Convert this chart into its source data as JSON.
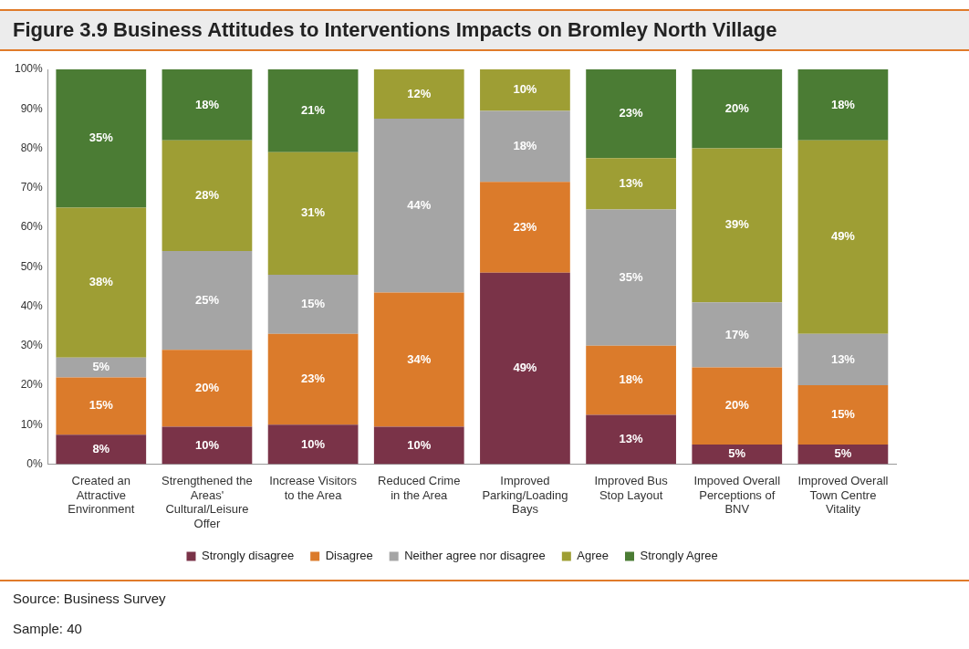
{
  "chart_data": {
    "type": "bar",
    "stacked": true,
    "title": "Figure 3.9 Business Attitudes to Interventions Impacts on Bromley North Village",
    "categories": [
      "Created an Attractive Environment",
      "Strengthened the Areas' Cultural/Leisure Offer",
      "Increase Visitors to the Area",
      "Reduced Crime in the Area",
      "Improved Parking/Loading Bays",
      "Improved Bus Stop Layout",
      "Impoved Overall Perceptions of BNV",
      "Improved Overall Town Centre Vitality"
    ],
    "series": [
      {
        "name": "Strongly disagree",
        "color": "#7a3348",
        "values": [
          7.5,
          9.5,
          10,
          9.5,
          48.5,
          12.5,
          5,
          5
        ],
        "value_labels": [
          "8%",
          "10%",
          "10%",
          "10%",
          "49%",
          "13%",
          "5%",
          "5%"
        ]
      },
      {
        "name": "Disagree",
        "color": "#db7b2b",
        "values": [
          14.5,
          19.5,
          23,
          34,
          23,
          17.5,
          19.5,
          15
        ],
        "value_labels": [
          "15%",
          "20%",
          "23%",
          "34%",
          "23%",
          "18%",
          "20%",
          "15%"
        ]
      },
      {
        "name": "Neither agree nor disagree",
        "color": "#a5a5a5",
        "values": [
          5,
          25,
          15,
          44,
          18,
          34.5,
          16.5,
          13
        ],
        "value_labels": [
          "5%",
          "25%",
          "15%",
          "44%",
          "18%",
          "35%",
          "17%",
          "13%"
        ]
      },
      {
        "name": "Agree",
        "color": "#9e9e34",
        "values": [
          38,
          28,
          31,
          12.5,
          10.5,
          13,
          39,
          49
        ],
        "value_labels": [
          "38%",
          "28%",
          "31%",
          "12%",
          "10%",
          "13%",
          "39%",
          "49%"
        ]
      },
      {
        "name": "Strongly Agree",
        "color": "#4b7c34",
        "values": [
          35,
          18,
          21,
          null,
          null,
          22.5,
          20,
          18
        ],
        "value_labels": [
          "35%",
          "18%",
          "21%",
          null,
          null,
          "23%",
          "20%",
          "18%"
        ]
      }
    ],
    "ylim": [
      0,
      100
    ],
    "yticks": [
      {
        "value": 0,
        "label": "0%"
      },
      {
        "value": 10,
        "label": "10%"
      },
      {
        "value": 20,
        "label": "20%"
      },
      {
        "value": 30,
        "label": "30%"
      },
      {
        "value": 40,
        "label": "40%"
      },
      {
        "value": 50,
        "label": "50%"
      },
      {
        "value": 60,
        "label": "60%"
      },
      {
        "value": 70,
        "label": "70%"
      },
      {
        "value": 80,
        "label": "80%"
      },
      {
        "value": 90,
        "label": "90%"
      },
      {
        "value": 100,
        "label": "100%"
      }
    ],
    "grid": false,
    "legend": "bottom",
    "annotations": [
      "Source: Business Survey",
      "Sample: 40"
    ]
  }
}
